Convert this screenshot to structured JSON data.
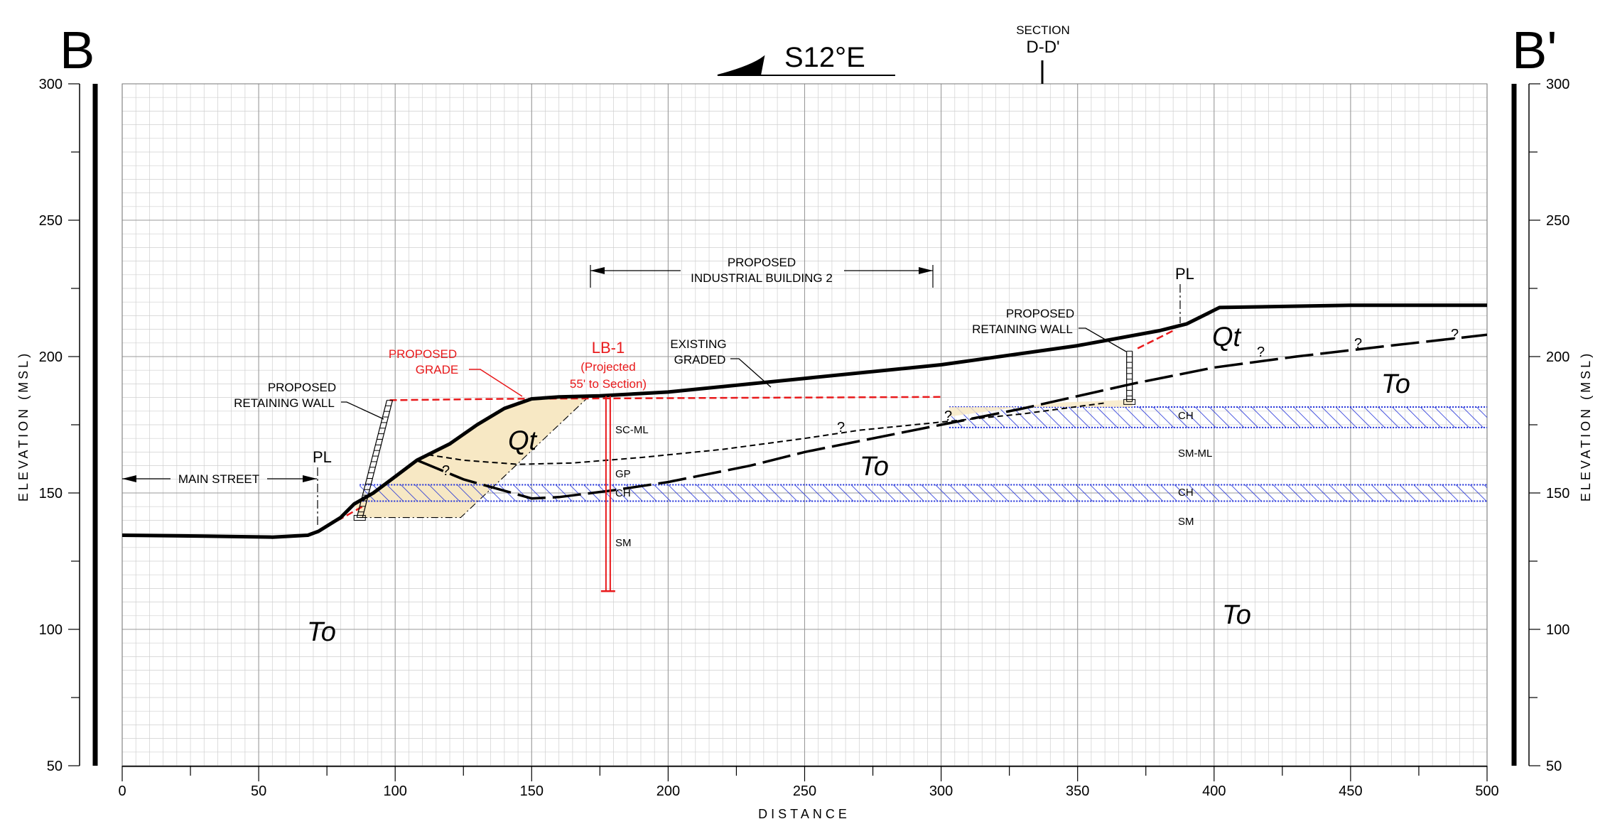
{
  "section": {
    "left_label": "B",
    "right_label": "B'",
    "bearing": "S12°E",
    "cross_section_caption": "SECTION",
    "cross_section_name": "D-D'"
  },
  "axes": {
    "y_label": "ELEVATION (MSL)",
    "x_label": "DISTANCE",
    "x_range": [
      0,
      500
    ],
    "y_range": [
      50,
      300
    ],
    "x_ticks": [
      0,
      50,
      100,
      150,
      200,
      250,
      300,
      350,
      400,
      450,
      500
    ],
    "y_ticks": [
      50,
      100,
      150,
      200,
      250,
      300
    ],
    "grid": true
  },
  "labels": {
    "proposed_grade": [
      "PROPOSED",
      "GRADE"
    ],
    "retaining_wall": [
      "PROPOSED",
      "RETAINING WALL"
    ],
    "retaining_wall_2": [
      "PROPOSED",
      "RETAINING WALL"
    ],
    "existing_graded": [
      "EXISTING",
      "GRADED"
    ],
    "building": [
      "PROPOSED",
      "INDUSTRIAL BUILDING 2"
    ],
    "main_street": "MAIN STREET",
    "property_line": "PL",
    "property_line_2": "PL",
    "boring": "LB-1",
    "boring_note": [
      "(Projected",
      "55' to Section)"
    ],
    "qt_left": "Qt",
    "qt_right": "Qt",
    "to_left": "To",
    "to_middle": "To",
    "to_upper_right": "To",
    "to_lower_right": "To",
    "q1": "?",
    "q2": "?",
    "q3": "?",
    "q4": "?",
    "q5": "?",
    "q6": "?",
    "soil_sc_ml": "SC-ML",
    "soil_gp": "GP",
    "soil_ch_left": "CH",
    "soil_sm_left": "SM",
    "soil_ch_upper_right": "CH",
    "soil_sm_ml_right": "SM-ML",
    "soil_ch_lower_right": "CH",
    "soil_sm_right": "SM"
  },
  "colors": {
    "proposed_grade": "#e8191b",
    "clay_hatch": "#1f2fd8",
    "qt_fill": "#f7e8c4",
    "line": "#000000"
  },
  "chart_data": {
    "type": "geologic cross section",
    "xlabel": "DISTANCE",
    "ylabel": "ELEVATION (MSL)",
    "xlim": [
      0,
      500
    ],
    "ylim": [
      50,
      300
    ],
    "existing_ground": [
      [
        0,
        134.5
      ],
      [
        30,
        134.2
      ],
      [
        55,
        133.8
      ],
      [
        68,
        134.5
      ],
      [
        72,
        136
      ],
      [
        80,
        141
      ],
      [
        85,
        146
      ],
      [
        92,
        150
      ],
      [
        100,
        156
      ],
      [
        108,
        162
      ],
      [
        112,
        164
      ],
      [
        120,
        168
      ],
      [
        130,
        175
      ],
      [
        140,
        181
      ],
      [
        150,
        184.5
      ],
      [
        160,
        185.2
      ],
      [
        175,
        185.6
      ],
      [
        200,
        187
      ],
      [
        250,
        192
      ],
      [
        300,
        197
      ],
      [
        350,
        204
      ],
      [
        380,
        209.5
      ],
      [
        390,
        212
      ],
      [
        398,
        216
      ],
      [
        400,
        217
      ],
      [
        402,
        218
      ],
      [
        450,
        218.8
      ],
      [
        500,
        218.8
      ]
    ],
    "proposed_grade": [
      [
        72,
        136
      ],
      [
        88,
        145
      ],
      [
        98,
        184
      ],
      [
        140,
        184.5
      ],
      [
        300,
        185.2
      ],
      [
        370,
        184.2
      ],
      [
        372,
        203
      ],
      [
        386,
        210
      ]
    ],
    "qt_to_contact": [
      [
        108,
        162
      ],
      [
        125,
        155
      ],
      [
        150,
        148
      ],
      [
        160,
        148.5
      ],
      [
        180,
        151
      ],
      [
        200,
        154
      ],
      [
        230,
        160
      ],
      [
        250,
        165
      ],
      [
        270,
        169
      ],
      [
        300,
        175
      ],
      [
        330,
        181
      ],
      [
        370,
        190
      ],
      [
        400,
        196
      ],
      [
        430,
        200
      ],
      [
        460,
        203.5
      ],
      [
        500,
        208
      ]
    ],
    "inferred_fill_bottom": [
      [
        112,
        164
      ],
      [
        125,
        162
      ],
      [
        145,
        160.5
      ],
      [
        165,
        161
      ],
      [
        190,
        163
      ],
      [
        220,
        166
      ],
      [
        250,
        170
      ],
      [
        270,
        173
      ],
      [
        300,
        176
      ],
      [
        330,
        179
      ],
      [
        360,
        183
      ]
    ],
    "proposed_building": {
      "from": 172,
      "to": 297
    },
    "boring_lb1": {
      "x": 178,
      "top": 185.5,
      "bottom": 114
    },
    "retaining_walls": [
      {
        "x_top": 98,
        "x_bottom": 87,
        "top": 184,
        "bottom": 141
      },
      {
        "x": 369,
        "top": 202,
        "bottom": 183.5
      }
    ],
    "property_lines": [
      72,
      388
    ],
    "clay_layers": [
      {
        "name": "CH",
        "from": 147,
        "to": 153
      },
      {
        "name": "CH",
        "from": 174,
        "to": 181.5
      }
    ]
  }
}
